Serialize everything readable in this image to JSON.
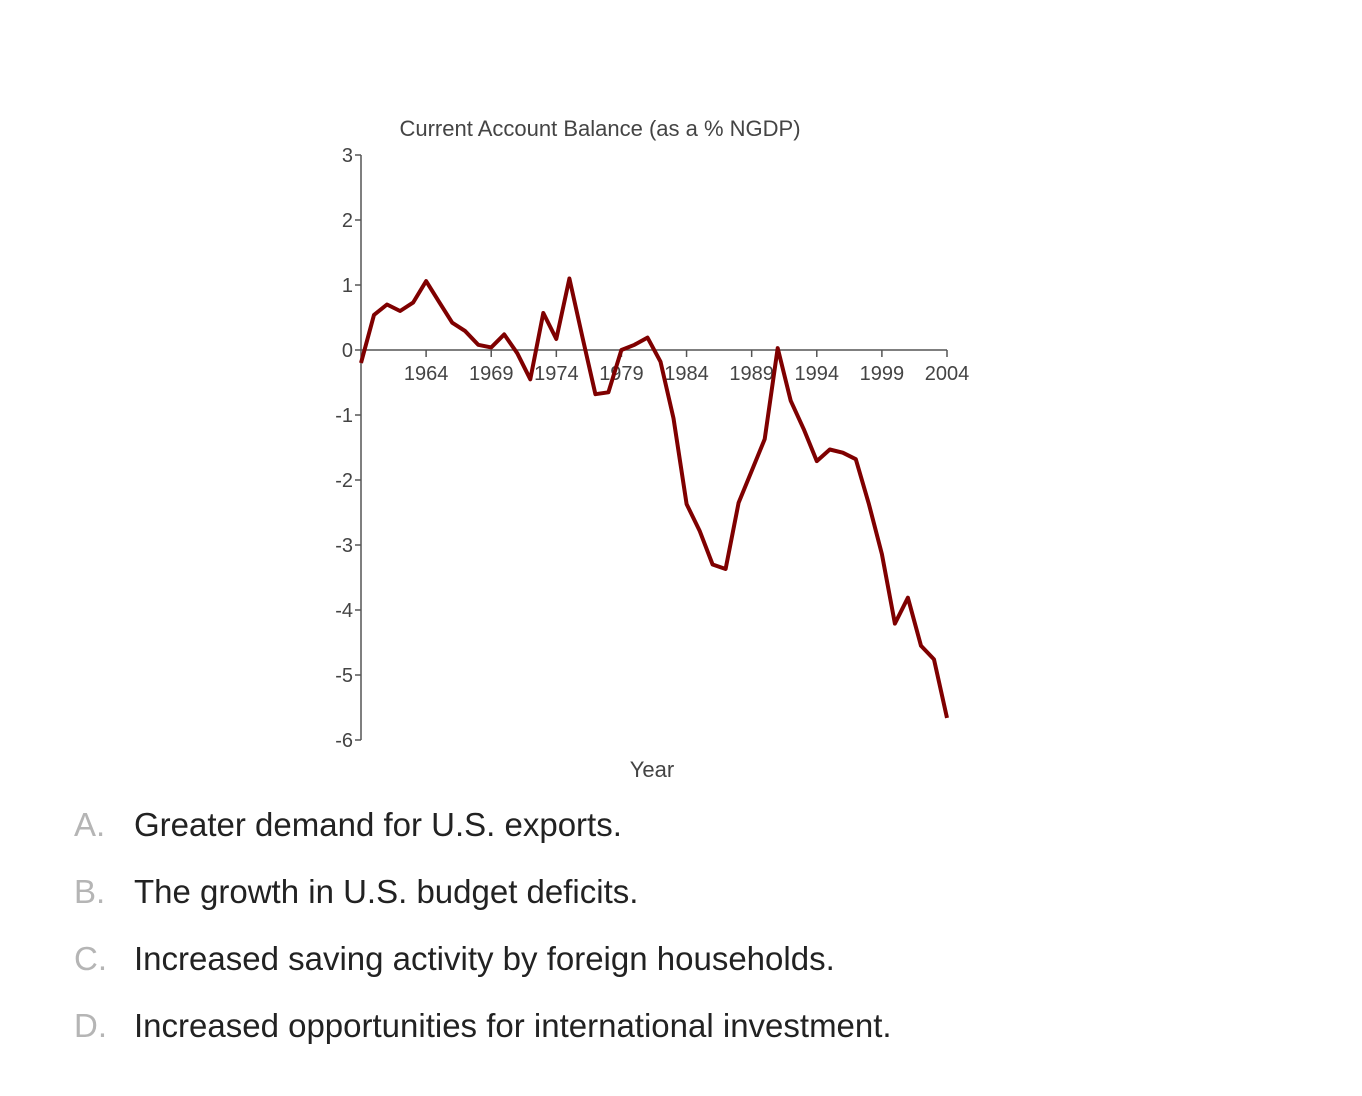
{
  "chart_data": {
    "type": "line",
    "title": "Current Account Balance (as a % NGDP)",
    "xlabel": "Year",
    "ylabel": "",
    "xlim": [
      1959,
      2004
    ],
    "ylim": [
      -6,
      3
    ],
    "x_ticks": [
      1964,
      1969,
      1974,
      1979,
      1984,
      1989,
      1994,
      1999,
      2004
    ],
    "y_ticks": [
      3,
      2,
      1,
      0,
      -1,
      -2,
      -3,
      -4,
      -5,
      -6
    ],
    "grid": false,
    "line_color": "#7f0000",
    "x": [
      1959,
      1960,
      1961,
      1962,
      1963,
      1964,
      1965,
      1966,
      1967,
      1968,
      1969,
      1970,
      1971,
      1972,
      1973,
      1974,
      1975,
      1976,
      1977,
      1978,
      1979,
      1980,
      1981,
      1982,
      1983,
      1984,
      1985,
      1986,
      1987,
      1988,
      1989,
      1990,
      1991,
      1992,
      1993,
      1994,
      1995,
      1996,
      1997,
      1998,
      1999,
      2000,
      2001,
      2002,
      2003,
      2004
    ],
    "y": [
      -0.2,
      0.54,
      0.7,
      0.6,
      0.73,
      1.06,
      0.74,
      0.42,
      0.29,
      0.08,
      0.04,
      0.24,
      -0.05,
      -0.45,
      0.57,
      0.17,
      1.1,
      0.2,
      -0.68,
      -0.65,
      0.0,
      0.08,
      0.19,
      -0.18,
      -1.05,
      -2.37,
      -2.78,
      -3.3,
      -3.37,
      -2.35,
      -1.86,
      -1.37,
      0.03,
      -0.78,
      -1.22,
      -1.71,
      -1.53,
      -1.58,
      -1.68,
      -2.37,
      -3.14,
      -4.21,
      -3.81,
      -4.55,
      -4.76,
      -5.66
    ]
  },
  "options": [
    {
      "letter": "A.",
      "text": "Greater demand for U.S. exports."
    },
    {
      "letter": "B.",
      "text": "The growth in U.S. budget deficits."
    },
    {
      "letter": "C.",
      "text": "Increased saving activity by foreign households."
    },
    {
      "letter": "D.",
      "text": "Increased opportunities for international investment."
    }
  ]
}
